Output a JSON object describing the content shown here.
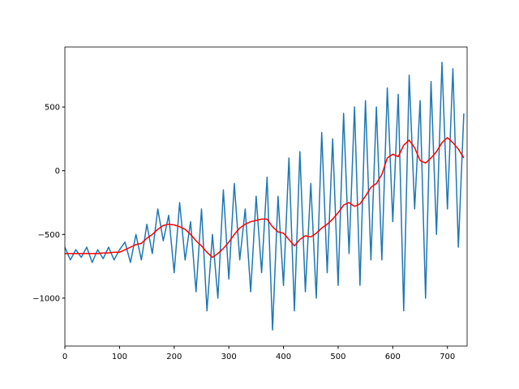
{
  "chart_data": {
    "type": "line",
    "x": [
      0,
      10,
      20,
      30,
      40,
      50,
      60,
      70,
      80,
      90,
      100,
      110,
      120,
      130,
      140,
      150,
      160,
      170,
      180,
      190,
      200,
      210,
      220,
      230,
      240,
      250,
      260,
      270,
      280,
      290,
      300,
      310,
      320,
      330,
      340,
      350,
      360,
      370,
      380,
      390,
      400,
      410,
      420,
      430,
      440,
      450,
      460,
      470,
      480,
      490,
      500,
      510,
      520,
      530,
      540,
      550,
      560,
      570,
      580,
      590,
      600,
      610,
      620,
      630,
      640,
      650,
      660,
      670,
      680,
      690,
      700,
      710,
      720,
      730
    ],
    "series": [
      {
        "color": "#1f77b4",
        "values": [
          -600,
          -700,
          -620,
          -680,
          -600,
          -720,
          -620,
          -690,
          -600,
          -700,
          -620,
          -560,
          -720,
          -500,
          -700,
          -420,
          -650,
          -300,
          -550,
          -350,
          -800,
          -250,
          -700,
          -400,
          -950,
          -300,
          -1100,
          -500,
          -1000,
          -150,
          -850,
          -100,
          -700,
          -300,
          -950,
          -200,
          -800,
          -50,
          -1250,
          -200,
          -900,
          100,
          -1100,
          150,
          -950,
          -100,
          -1000,
          300,
          -800,
          250,
          -900,
          450,
          -650,
          500,
          -900,
          550,
          -700,
          500,
          -700,
          650,
          -400,
          600,
          -1100,
          750,
          -300,
          550,
          -1000,
          700,
          -500,
          850,
          -300,
          800,
          -600,
          450
        ]
      },
      {
        "color": "#ff0000",
        "values": [
          -650,
          -650,
          -650,
          -650,
          -650,
          -650,
          -650,
          -645,
          -645,
          -640,
          -640,
          -620,
          -600,
          -580,
          -570,
          -530,
          -500,
          -460,
          -430,
          -420,
          -425,
          -440,
          -460,
          -500,
          -550,
          -590,
          -640,
          -680,
          -650,
          -610,
          -560,
          -500,
          -450,
          -420,
          -400,
          -390,
          -380,
          -380,
          -440,
          -480,
          -490,
          -540,
          -590,
          -540,
          -510,
          -520,
          -490,
          -450,
          -420,
          -380,
          -330,
          -270,
          -250,
          -280,
          -260,
          -200,
          -130,
          -100,
          -30,
          100,
          130,
          110,
          200,
          240,
          180,
          80,
          60,
          100,
          150,
          220,
          260,
          220,
          170,
          100
        ]
      }
    ],
    "xlim": [
      0,
      736
    ],
    "ylim": [
      -1376,
      971
    ],
    "xticks": [
      0,
      100,
      200,
      300,
      400,
      500,
      600,
      700
    ],
    "yticks": [
      {
        "value": -1000,
        "label": "−1000"
      },
      {
        "value": -500,
        "label": "−500"
      },
      0,
      500
    ]
  }
}
